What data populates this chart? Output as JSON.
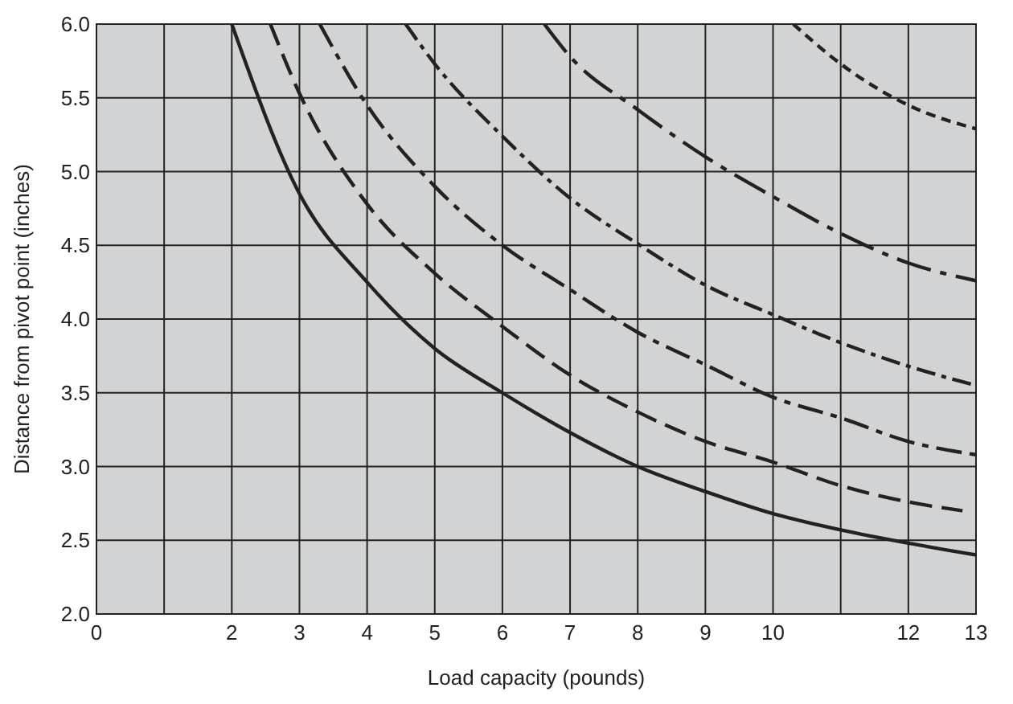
{
  "chart_data": {
    "type": "line",
    "xlabel": "Load capacity (pounds)",
    "ylabel": "Distance from pivot point (inches)",
    "xlim": [
      0,
      13
    ],
    "ylim": [
      2,
      6
    ],
    "xticks": [
      0,
      {
        "value": 1,
        "label": null
      },
      2,
      3,
      4,
      5,
      6,
      7,
      8,
      9,
      10,
      {
        "value": 11,
        "label": null
      },
      12,
      13
    ],
    "yticks": [
      {
        "value": 2,
        "label": "2.0"
      },
      2.5,
      {
        "value": 3,
        "label": "3.0"
      },
      3.5,
      {
        "value": 4,
        "label": "4.0"
      },
      4.5,
      {
        "value": 5,
        "label": "5.0"
      },
      5.5,
      {
        "value": 6,
        "label": "6.0"
      }
    ],
    "grid": true,
    "marker": "none",
    "series": [
      {
        "color": "#222222",
        "line_style": "solid",
        "x": [
          2,
          3,
          4,
          5,
          6,
          7,
          8,
          9,
          10,
          11,
          12,
          13
        ],
        "values": [
          6,
          4.85,
          4.25,
          3.8,
          3.5,
          3.23,
          3,
          2.83,
          2.68,
          2.57,
          2.48,
          2.4
        ]
      },
      {
        "color": "#222222",
        "line_style": "dashed",
        "x": [
          2.57,
          3,
          4,
          5,
          6,
          7,
          8,
          9,
          10,
          11,
          12,
          12.8
        ],
        "values": [
          6,
          5.53,
          4.78,
          4.31,
          3.95,
          3.62,
          3.37,
          3.17,
          3.03,
          2.87,
          2.76,
          2.7
        ]
      },
      {
        "color": "#222222",
        "line_style": "dashdot",
        "x": [
          3.3,
          4,
          5,
          6,
          7,
          8,
          9,
          10,
          11,
          12,
          13
        ],
        "values": [
          6,
          5.45,
          4.9,
          4.5,
          4.2,
          3.91,
          3.69,
          3.47,
          3.33,
          3.17,
          3.08
        ]
      },
      {
        "color": "#222222",
        "line_style": "dashdotdense",
        "x": [
          4.57,
          5,
          6,
          7,
          8,
          9,
          10,
          11,
          12,
          13
        ],
        "values": [
          6,
          5.73,
          5.24,
          4.82,
          4.51,
          4.23,
          4.03,
          3.84,
          3.68,
          3.55
        ]
      },
      {
        "color": "#222222",
        "line_style": "longdashdot",
        "x": [
          6.62,
          7,
          8,
          9,
          10,
          11,
          12,
          13
        ],
        "values": [
          6,
          5.78,
          5.42,
          5.1,
          4.83,
          4.58,
          4.38,
          4.26
        ]
      },
      {
        "color": "#222222",
        "line_style": "dotted",
        "x": [
          10.3,
          11,
          12,
          13
        ],
        "values": [
          6,
          5.73,
          5.45,
          5.29
        ]
      }
    ]
  }
}
